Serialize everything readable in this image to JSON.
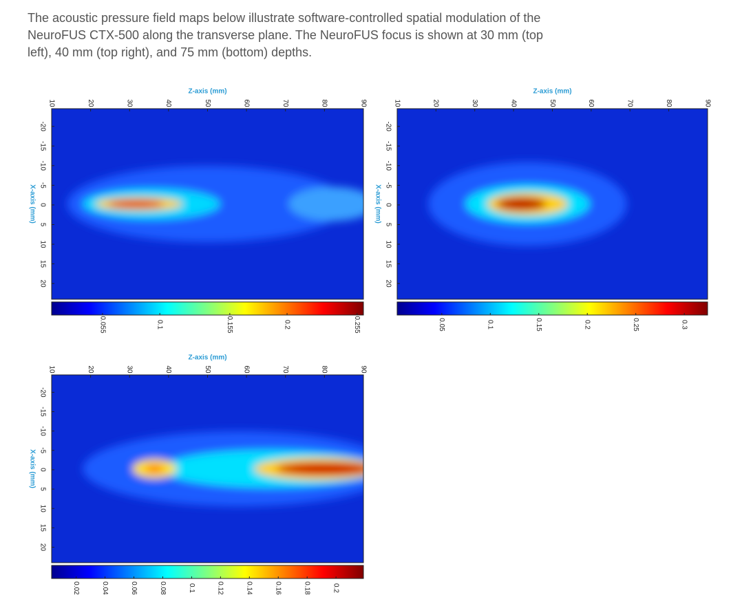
{
  "intro": {
    "lines": [
      "The acoustic pressure field maps below illustrate software-controlled spatial modulation of the",
      "NeuroFUS CTX-500 along the transverse plane. The NeuroFUS focus is shown at 30 mm (top",
      "left), 40 mm (top right), and 75 mm (bottom) depths."
    ]
  },
  "chart_data": [
    {
      "type": "heatmap",
      "xlabel": "Z-axis (mm)",
      "ylabel": "X-axis (mm)",
      "xlim": [
        10,
        90
      ],
      "xticks": [
        10,
        20,
        30,
        40,
        50,
        60,
        70,
        80,
        90
      ],
      "ylim": [
        -24.5,
        24
      ],
      "yticks": [
        -20,
        -15,
        -10,
        -5,
        0,
        5,
        10,
        15,
        20
      ],
      "clim": [
        0.015,
        0.26
      ],
      "cticks": [
        0.055,
        0.1,
        0.155,
        0.2,
        0.255
      ]
    },
    {
      "type": "heatmap",
      "xlabel": "Z-axis (mm)",
      "ylabel": "X-axis (mm)",
      "xlim": [
        10,
        90
      ],
      "xticks": [
        10,
        20,
        30,
        40,
        50,
        60,
        70,
        80,
        90
      ],
      "ylim": [
        -24.5,
        24
      ],
      "yticks": [
        -20,
        -15,
        -10,
        -5,
        0,
        5,
        10,
        15,
        20
      ],
      "clim": [
        0.004,
        0.324
      ],
      "cticks": [
        0.05,
        0.1,
        0.15,
        0.2,
        0.25,
        0.3
      ]
    },
    {
      "type": "heatmap",
      "xlabel": "Z-axis (mm)",
      "ylabel": "X-axis (mm)",
      "xlim": [
        10,
        90
      ],
      "xticks": [
        10,
        20,
        30,
        40,
        50,
        60,
        70,
        80,
        90
      ],
      "ylim": [
        -24.5,
        24
      ],
      "yticks": [
        -20,
        -15,
        -10,
        -5,
        0,
        5,
        10,
        15,
        20
      ],
      "clim": [
        0.003,
        0.219
      ],
      "cticks": [
        0.02,
        0.04,
        0.06,
        0.08,
        0.1,
        0.12,
        0.14,
        0.16,
        0.18,
        0.2
      ]
    }
  ]
}
